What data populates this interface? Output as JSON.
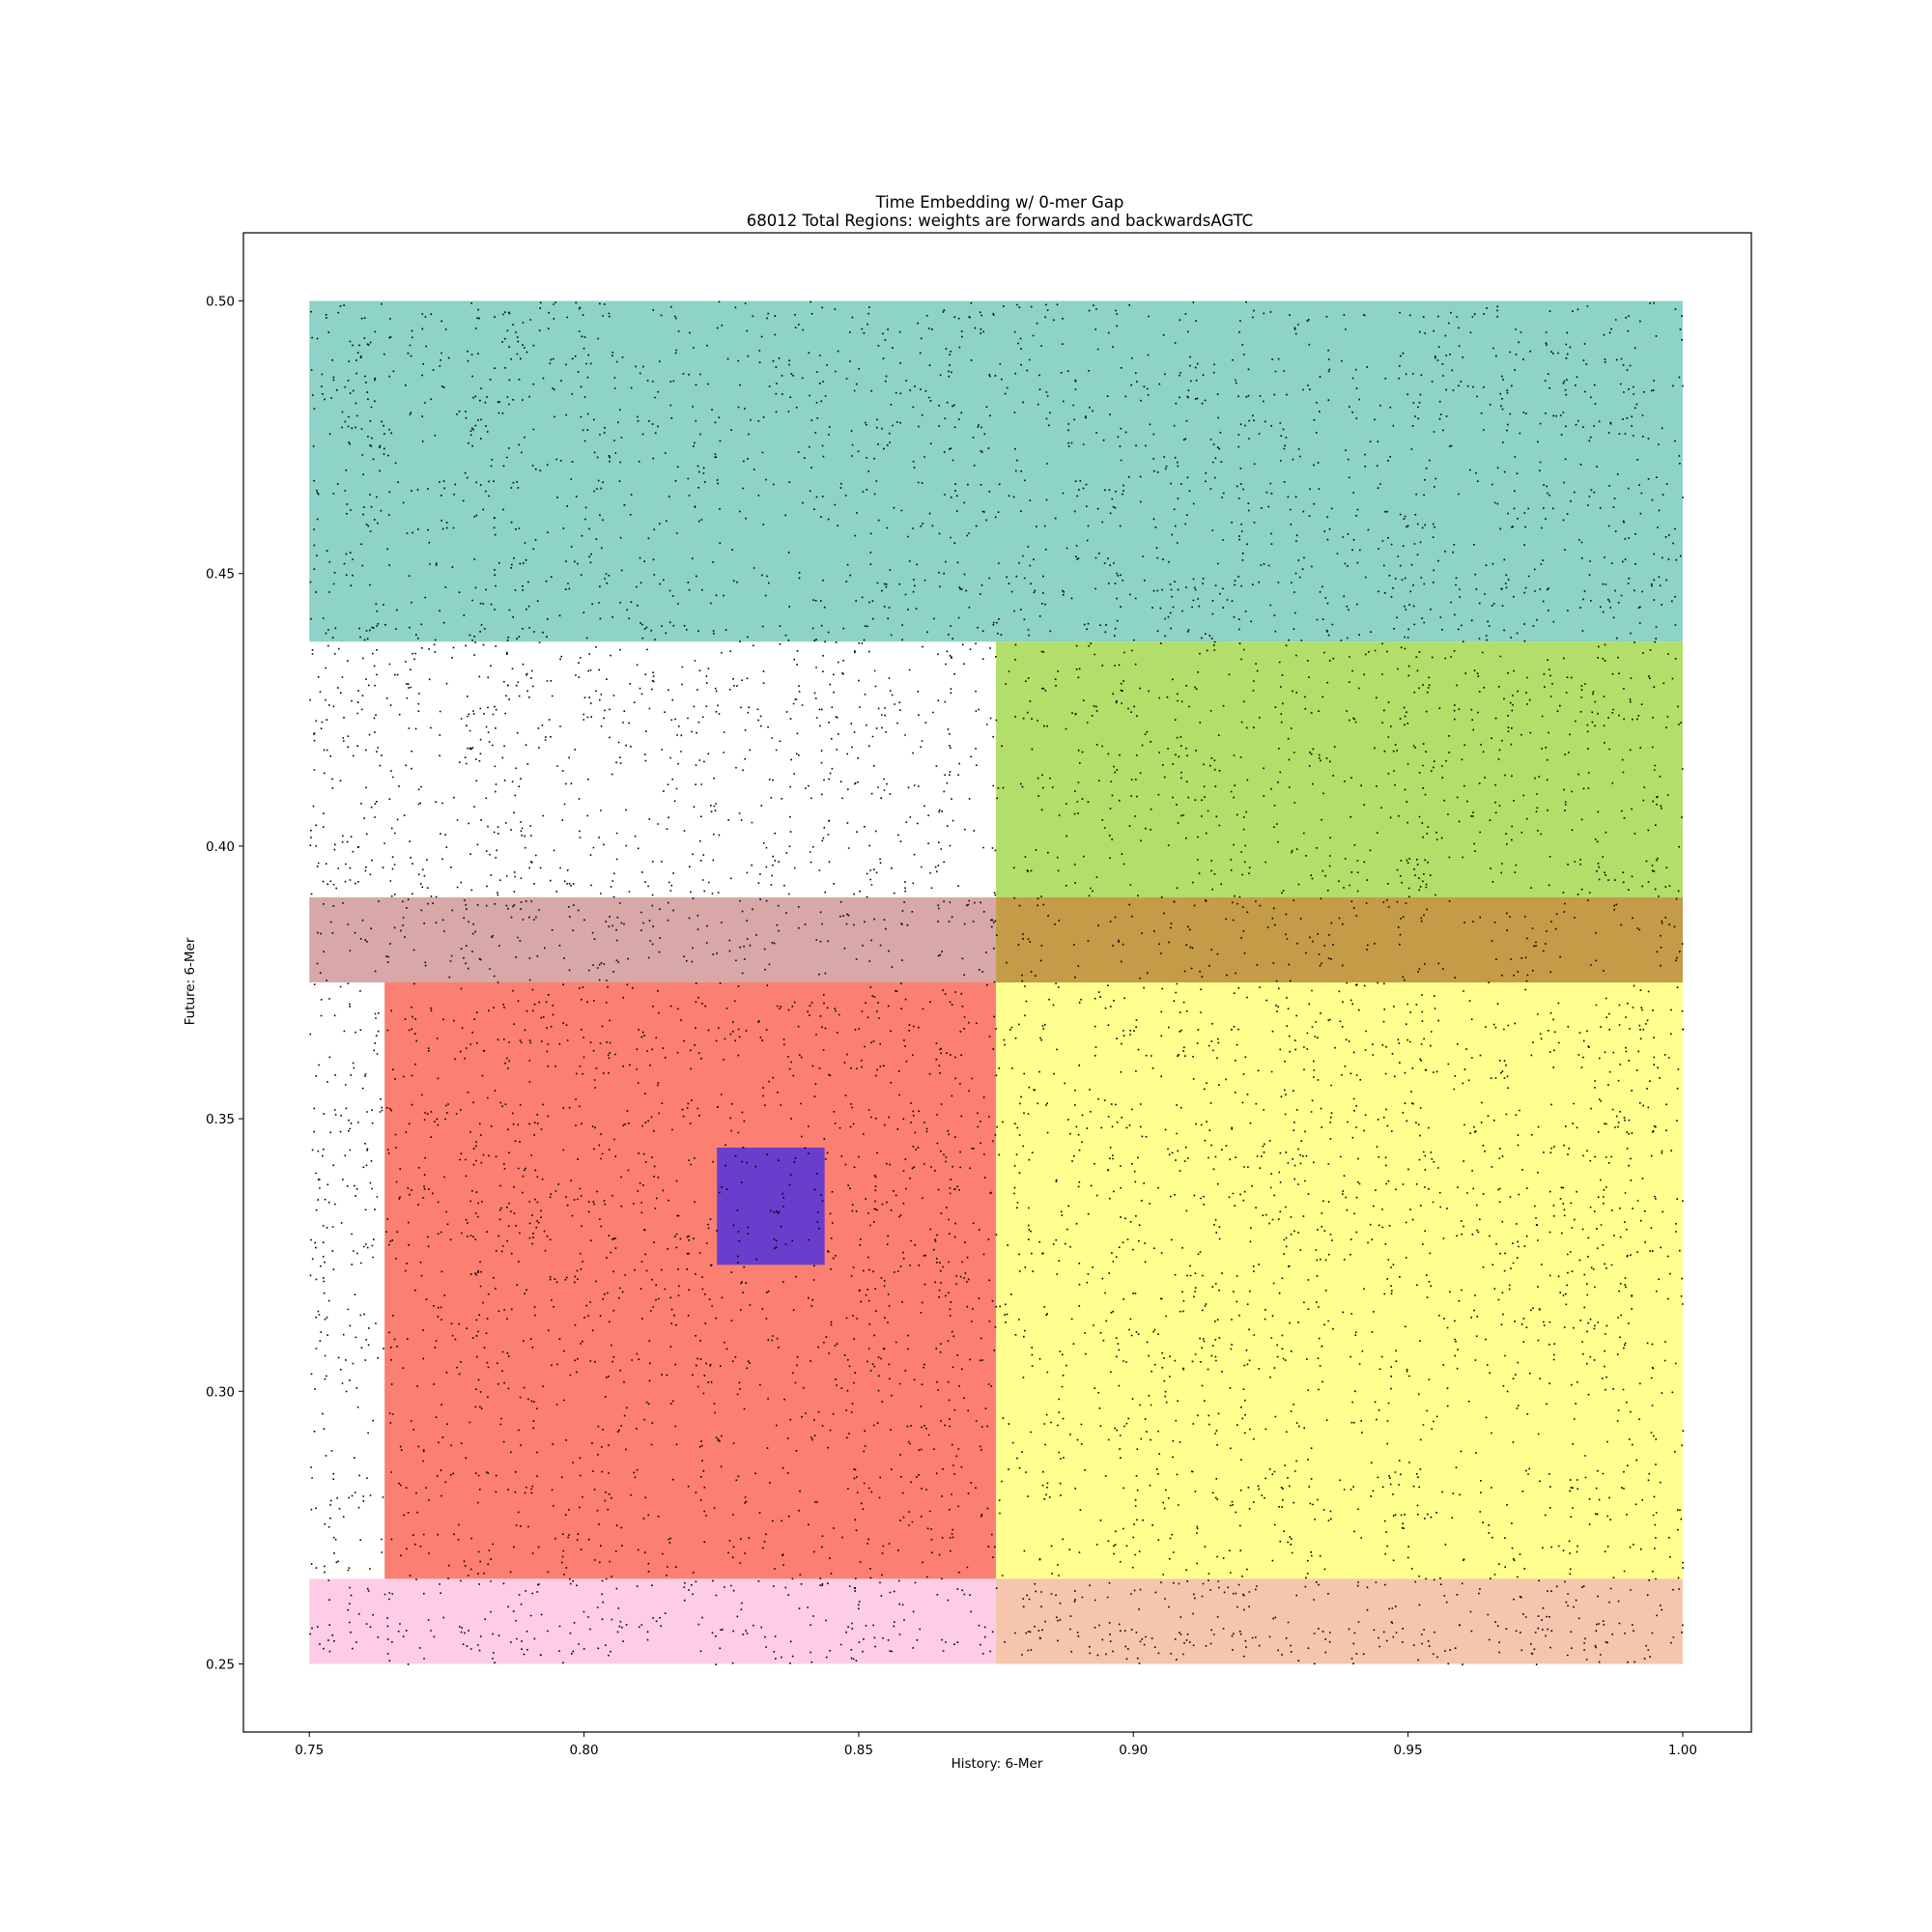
{
  "chart_data": {
    "type": "scatter",
    "title": "Time Embedding w/ 0-mer Gap",
    "subtitle": "68012 Total Regions: weights are forwards and backwardsAGTC",
    "xlabel": "History: 6-Mer",
    "ylabel": "Future: 6-Mer",
    "xlim": [
      0.738,
      1.0125
    ],
    "ylim": [
      0.2375,
      0.5125
    ],
    "x_ticks": [
      "0.75",
      "0.80",
      "0.85",
      "0.90",
      "0.95",
      "1.00"
    ],
    "x_tick_values": [
      0.75,
      0.8,
      0.85,
      0.9,
      0.95,
      1.0
    ],
    "y_ticks": [
      "0.25",
      "0.30",
      "0.35",
      "0.40",
      "0.45",
      "0.50"
    ],
    "y_tick_values": [
      0.25,
      0.3,
      0.35,
      0.4,
      0.45,
      0.5
    ],
    "grid": false,
    "point_color": "#000000",
    "point_count_total": 68012,
    "point_domain": {
      "x": [
        0.75,
        1.0
      ],
      "y": [
        0.25,
        0.5
      ]
    },
    "regions": [
      {
        "x": [
          0.75,
          1.0
        ],
        "y": [
          0.4375,
          0.5
        ],
        "color": "#8dd3c7"
      },
      {
        "x": [
          0.875,
          1.0
        ],
        "y": [
          0.375,
          0.4375
        ],
        "color": "#b3de69"
      },
      {
        "x": [
          0.75,
          0.875
        ],
        "y": [
          0.375,
          0.3906
        ],
        "color": "#d8a7a7"
      },
      {
        "x": [
          0.875,
          1.0
        ],
        "y": [
          0.375,
          0.3906
        ],
        "color": "#c49c48"
      },
      {
        "x": [
          0.7637,
          0.875
        ],
        "y": [
          0.2656,
          0.375
        ],
        "color": "#fb8072"
      },
      {
        "x": [
          0.875,
          1.0
        ],
        "y": [
          0.2656,
          0.375
        ],
        "color": "#ffff8f"
      },
      {
        "x": [
          0.75,
          0.875
        ],
        "y": [
          0.25,
          0.2656
        ],
        "color": "#fccde5"
      },
      {
        "x": [
          0.875,
          1.0
        ],
        "y": [
          0.25,
          0.2656
        ],
        "color": "#f6c5ae"
      },
      {
        "x": [
          0.8242,
          0.8438
        ],
        "y": [
          0.3232,
          0.3447
        ],
        "color": "#6a3dcc"
      }
    ]
  }
}
